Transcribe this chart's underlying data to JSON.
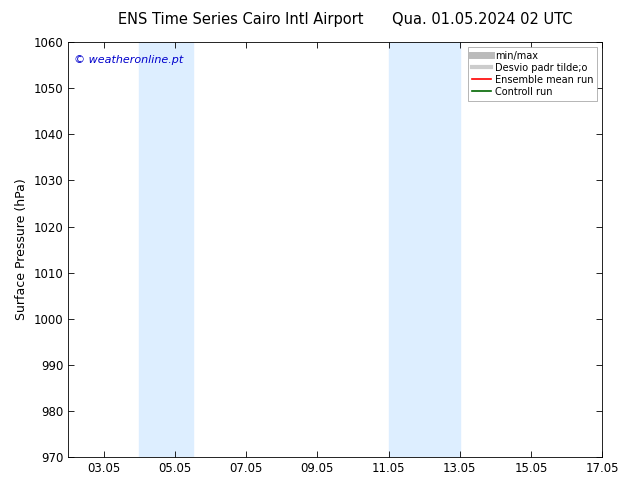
{
  "title_left": "ENS Time Series Cairo Intl Airport",
  "title_right": "Qua. 01.05.2024 02 UTC",
  "ylabel": "Surface Pressure (hPa)",
  "ylim": [
    970,
    1060
  ],
  "yticks": [
    970,
    980,
    990,
    1000,
    1010,
    1020,
    1030,
    1040,
    1050,
    1060
  ],
  "xlim_days": [
    2.0,
    17.0
  ],
  "xtick_labels": [
    "03.05",
    "05.05",
    "07.05",
    "09.05",
    "11.05",
    "13.05",
    "15.05",
    "17.05"
  ],
  "xtick_positions": [
    3.0,
    5.0,
    7.0,
    9.0,
    11.0,
    13.0,
    15.0,
    17.0
  ],
  "shaded_bands": [
    {
      "xmin": 4.0,
      "xmax": 5.5
    },
    {
      "xmin": 11.0,
      "xmax": 13.0
    }
  ],
  "band_color": "#ddeeff",
  "watermark": "© weatheronline.pt",
  "watermark_color": "#0000cc",
  "legend_items": [
    {
      "label": "min/max",
      "color": "#bbbbbb",
      "lw": 5
    },
    {
      "label": "Desvio padr tilde;o",
      "color": "#cccccc",
      "lw": 3
    },
    {
      "label": "Ensemble mean run",
      "color": "#ff0000",
      "lw": 1.2
    },
    {
      "label": "Controll run",
      "color": "#006600",
      "lw": 1.2
    }
  ],
  "background_color": "#ffffff",
  "title_fontsize": 10.5,
  "tick_fontsize": 8.5,
  "ylabel_fontsize": 9
}
